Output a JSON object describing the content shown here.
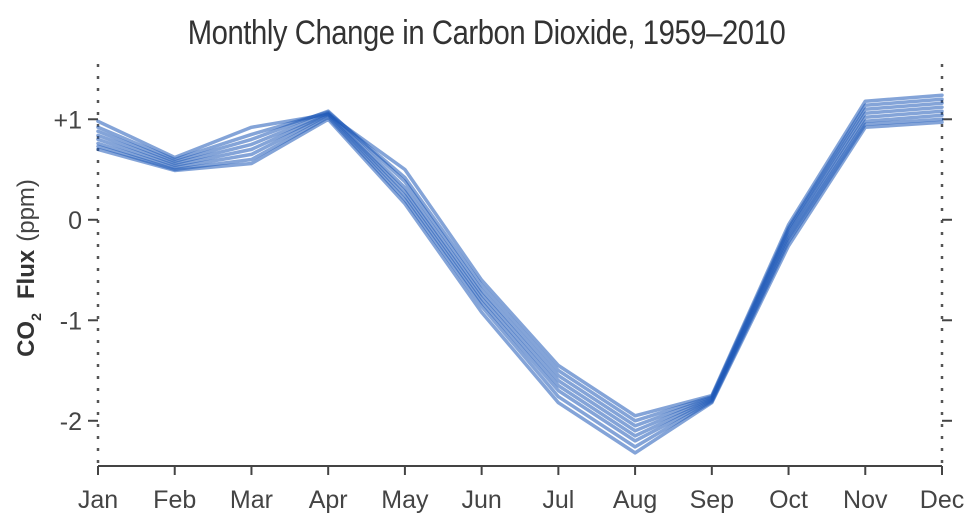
{
  "chart_data": {
    "type": "line",
    "title": "Monthly Change in Carbon Dioxide, 1959–2010",
    "ylabel": {
      "main": "CO",
      "subscript": "2",
      "bold_part": "Flux",
      "unit": "(ppm)"
    },
    "xlabel": "",
    "categories": [
      "Jan",
      "Feb",
      "Mar",
      "Apr",
      "May",
      "Jun",
      "Jul",
      "Aug",
      "Sep",
      "Oct",
      "Nov",
      "Dec"
    ],
    "ylim": [
      -2.45,
      1.55
    ],
    "yticks": [
      1,
      0,
      -1,
      -2
    ],
    "ytick_labels": [
      "+1",
      "0",
      "-1",
      "-2"
    ],
    "grid": false,
    "series_count_note_free": true,
    "series": [
      {
        "values": [
          0.98,
          0.62,
          0.92,
          1.05,
          0.5,
          -0.6,
          -1.45,
          -1.95,
          -1.75,
          -0.05,
          1.18,
          1.24
        ]
      },
      {
        "values": [
          0.92,
          0.6,
          0.85,
          1.07,
          0.42,
          -0.65,
          -1.5,
          -2.0,
          -1.76,
          -0.08,
          1.14,
          1.2
        ]
      },
      {
        "values": [
          0.88,
          0.58,
          0.8,
          1.08,
          0.38,
          -0.7,
          -1.55,
          -2.05,
          -1.77,
          -0.1,
          1.1,
          1.16
        ]
      },
      {
        "values": [
          0.84,
          0.56,
          0.75,
          1.06,
          0.32,
          -0.74,
          -1.6,
          -2.1,
          -1.78,
          -0.13,
          1.06,
          1.12
        ]
      },
      {
        "values": [
          0.8,
          0.54,
          0.7,
          1.05,
          0.28,
          -0.78,
          -1.65,
          -2.15,
          -1.79,
          -0.16,
          1.02,
          1.08
        ]
      },
      {
        "values": [
          0.76,
          0.52,
          0.65,
          1.04,
          0.24,
          -0.82,
          -1.7,
          -2.2,
          -1.8,
          -0.19,
          0.98,
          1.04
        ]
      },
      {
        "values": [
          0.73,
          0.5,
          0.6,
          1.02,
          0.2,
          -0.86,
          -1.76,
          -2.26,
          -1.81,
          -0.22,
          0.95,
          1.0
        ]
      },
      {
        "values": [
          0.7,
          0.49,
          0.56,
          1.0,
          0.16,
          -0.92,
          -1.82,
          -2.32,
          -1.82,
          -0.26,
          0.92,
          0.97
        ]
      }
    ],
    "line_color": "#1f5ab8"
  }
}
